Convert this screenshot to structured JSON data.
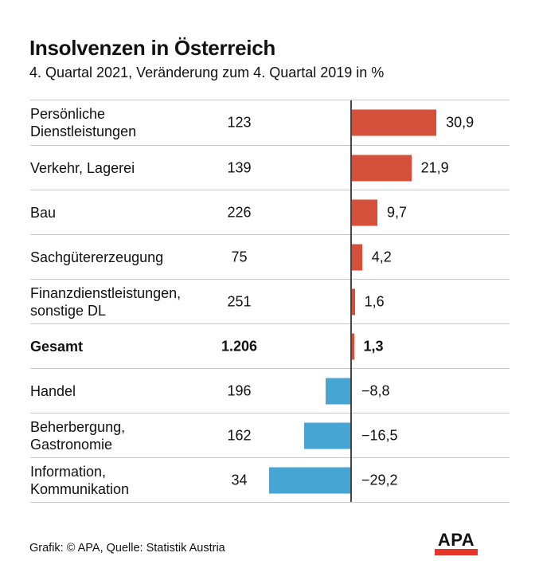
{
  "chart_data": {
    "type": "bar",
    "orientation": "horizontal",
    "title": "Insolvenzen in Österreich",
    "subtitle": "4. Quartal 2021, Veränderung zum 4. Quartal 2019 in %",
    "unit": "%",
    "zero_axis": true,
    "positive_color": "#d4503a",
    "negative_color": "#46a5d2",
    "xlim": [
      -30,
      31
    ],
    "rows": [
      {
        "label": "Persönliche Dienstleistungen",
        "count_label": "123",
        "value": 30.9,
        "value_label": "30,9",
        "emphasis": false
      },
      {
        "label": "Verkehr, Lagerei",
        "count_label": "139",
        "value": 21.9,
        "value_label": "21,9",
        "emphasis": false
      },
      {
        "label": "Bau",
        "count_label": "226",
        "value": 9.7,
        "value_label": "9,7",
        "emphasis": false
      },
      {
        "label": "Sachgütererzeugung",
        "count_label": "75",
        "value": 4.2,
        "value_label": "4,2",
        "emphasis": false
      },
      {
        "label": "Finanzdienstleistungen, sonstige DL",
        "count_label": "251",
        "value": 1.6,
        "value_label": "1,6",
        "emphasis": false
      },
      {
        "label": "Gesamt",
        "count_label": "1.206",
        "value": 1.3,
        "value_label": "1,3",
        "emphasis": true
      },
      {
        "label": "Handel",
        "count_label": "196",
        "value": -8.8,
        "value_label": "−8,8",
        "emphasis": false
      },
      {
        "label": "Beherbergung, Gastronomie",
        "count_label": "162",
        "value": -16.5,
        "value_label": "−16,5",
        "emphasis": false
      },
      {
        "label": "Information, Kommunikation",
        "count_label": "34",
        "value": -29.2,
        "value_label": "−29,2",
        "emphasis": false
      }
    ]
  },
  "footer": {
    "credit": "Grafik: © APA, Quelle: Statistik Austria",
    "logo_text": "APA",
    "logo_color": "#e63529"
  }
}
